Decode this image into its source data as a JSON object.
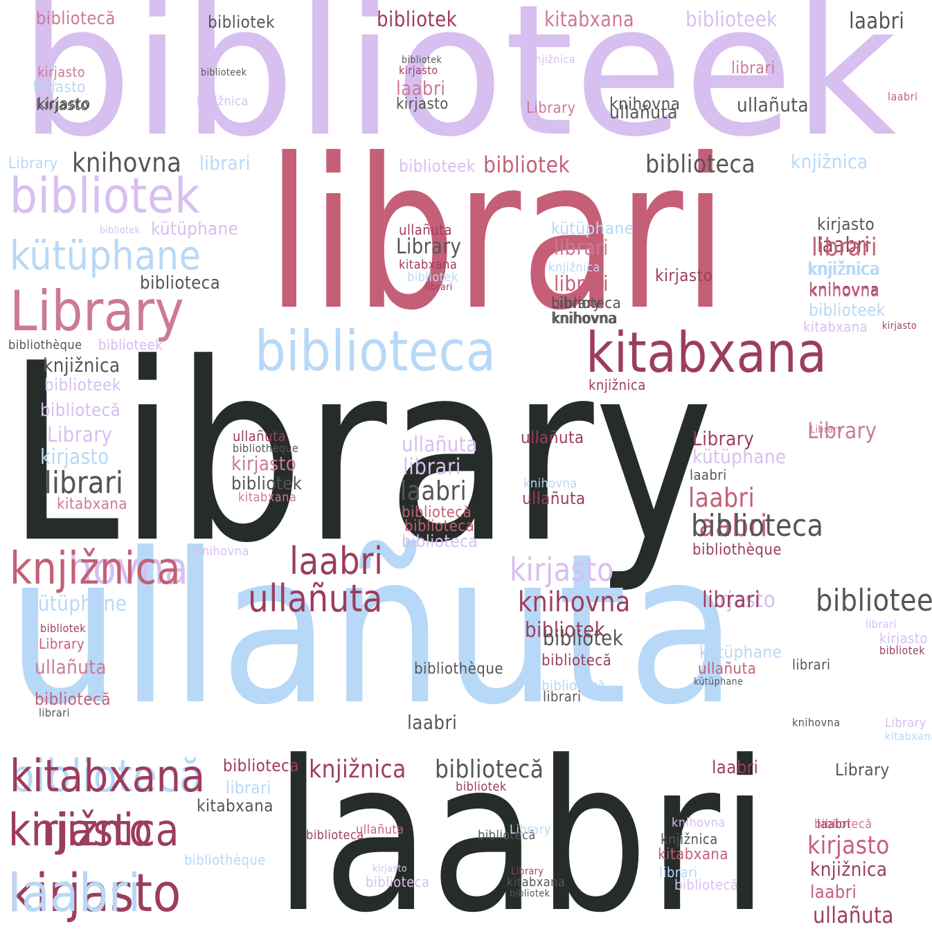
{
  "colors": {
    "dark": "#262d29",
    "charcoal": "#555555",
    "crimson": "#9c3d5c",
    "rose": "#c45f77",
    "pink": "#cc7a93",
    "lavender": "#d7bff0",
    "lightblue": "#b8d8f7"
  },
  "words": [
    {
      "text": "biblioteek",
      "color": "lavender"
    },
    {
      "text": "librari",
      "color": "rose"
    },
    {
      "text": "Library",
      "color": "dark"
    },
    {
      "text": "ullañuta",
      "color": "lightblue"
    },
    {
      "text": "laabri",
      "color": "dark"
    },
    {
      "text": "biblioteca",
      "color": "lightblue"
    },
    {
      "text": "kitabxana",
      "color": "crimson"
    },
    {
      "text": "Library",
      "color": "pink"
    },
    {
      "text": "bibliotek",
      "color": "lavender"
    },
    {
      "text": "kütüphane",
      "color": "lightblue"
    },
    {
      "text": "knihovna",
      "color": "lavender"
    },
    {
      "text": "bibliotecă",
      "color": "lightblue"
    },
    {
      "text": "knjižnica",
      "color": "crimson"
    },
    {
      "text": "kirjasto",
      "color": "crimson"
    },
    {
      "text": "bibliotecă",
      "color": "pink"
    },
    {
      "text": "bibliotek",
      "color": "crimson"
    },
    {
      "text": "kitabxana",
      "color": "pink"
    },
    {
      "text": "biblioteek",
      "color": "lavender"
    },
    {
      "text": "laabri",
      "color": "charcoal"
    },
    {
      "text": "bibliotek",
      "color": "charcoal"
    },
    {
      "text": "knihovna",
      "color": "charcoal"
    },
    {
      "text": "librari",
      "color": "lightblue"
    },
    {
      "text": "Library",
      "color": "lightblue"
    },
    {
      "text": "biblioteca",
      "color": "charcoal"
    },
    {
      "text": "knjižnica",
      "color": "lightblue"
    },
    {
      "text": "bibliotek",
      "color": "rose"
    },
    {
      "text": "biblioteek",
      "color": "lavender"
    },
    {
      "text": "ullañuta",
      "color": "charcoal"
    },
    {
      "text": "librari",
      "color": "pink"
    },
    {
      "text": "knihovna",
      "color": "charcoal"
    },
    {
      "text": "kirjasto",
      "color": "charcoal"
    },
    {
      "text": "Library",
      "color": "pink"
    },
    {
      "text": "laabri",
      "color": "pink"
    },
    {
      "text": "kirjasto",
      "color": "pink"
    },
    {
      "text": "kirjasto",
      "color": "lightblue"
    },
    {
      "text": "kirjasto",
      "color": "charcoal"
    },
    {
      "text": "biblioteek",
      "color": "charcoal"
    },
    {
      "text": "knjižnica",
      "color": "lavender"
    },
    {
      "text": "bibliotek",
      "color": "charcoal"
    },
    {
      "text": "kirjasto",
      "color": "crimson"
    },
    {
      "text": "laabri",
      "color": "rose"
    },
    {
      "text": "laabri",
      "color": "crimson"
    },
    {
      "text": "Library",
      "color": "pink"
    },
    {
      "text": "knjižnica",
      "color": "crimson"
    },
    {
      "text": "kirjasto",
      "color": "lavender"
    },
    {
      "text": "librari",
      "color": "pink"
    },
    {
      "text": "ullañuta",
      "color": "charcoal"
    },
    {
      "text": "knihovna",
      "color": "charcoal"
    },
    {
      "text": "kirjasto",
      "color": "charcoal"
    },
    {
      "text": "laabri",
      "color": "rose"
    },
    {
      "text": "bibliotecă",
      "color": "pink"
    },
    {
      "text": "kütüphane",
      "color": "lightblue"
    },
    {
      "text": "knihovna",
      "color": "crimson"
    },
    {
      "text": "biblioteca",
      "color": "charcoal"
    },
    {
      "text": "knjižnica",
      "color": "lightblue"
    },
    {
      "text": "librari",
      "color": "charcoal"
    },
    {
      "text": "bibliotek",
      "color": "lavender"
    },
    {
      "text": "biblioteek",
      "color": "lavender"
    },
    {
      "text": "knjižnica",
      "color": "lightblue"
    },
    {
      "text": "bibliotek",
      "color": "crimson"
    },
    {
      "text": "bibliotek",
      "color": "lightblue"
    },
    {
      "text": "kütüphane",
      "color": "lavender"
    },
    {
      "text": "Library",
      "color": "pink"
    },
    {
      "text": "ullañuta",
      "color": "crimson"
    },
    {
      "text": "Library",
      "color": "charcoal"
    },
    {
      "text": "kitabxana",
      "color": "crimson"
    },
    {
      "text": "bibliotek",
      "color": "lightblue"
    },
    {
      "text": "librari",
      "color": "crimson"
    },
    {
      "text": "librari",
      "color": "rose"
    },
    {
      "text": "kirjasto",
      "color": "crimson"
    },
    {
      "text": "biblioteca",
      "color": "charcoal"
    },
    {
      "text": "knihovna",
      "color": "charcoal"
    },
    {
      "text": "knjižnica",
      "color": "lavender"
    },
    {
      "text": "kirjasto",
      "color": "charcoal"
    },
    {
      "text": "librari",
      "color": "rose"
    },
    {
      "text": "knjižnica",
      "color": "lightblue"
    },
    {
      "text": "knihovna",
      "color": "rose"
    },
    {
      "text": "biblioteek",
      "color": "lightblue"
    },
    {
      "text": "kitabxana",
      "color": "lavender"
    },
    {
      "text": "kirjasto",
      "color": "crimson"
    },
    {
      "text": "Library",
      "color": "charcoal"
    },
    {
      "text": "bibliothèque",
      "color": "charcoal"
    },
    {
      "text": "biblioteek",
      "color": "lavender"
    },
    {
      "text": "knjižnica",
      "color": "charcoal"
    },
    {
      "text": "biblioteek",
      "color": "lavender"
    },
    {
      "text": "bibliotecă",
      "color": "lavender"
    },
    {
      "text": "Library",
      "color": "lavender"
    },
    {
      "text": "kirjasto",
      "color": "lightblue"
    },
    {
      "text": "librari",
      "color": "charcoal"
    },
    {
      "text": "kitabxana",
      "color": "pink"
    },
    {
      "text": "ullañuta",
      "color": "lavender"
    },
    {
      "text": "librari",
      "color": "lavender"
    },
    {
      "text": "laabri",
      "color": "charcoal"
    },
    {
      "text": "bibliotecă",
      "color": "rose"
    },
    {
      "text": "biblioteca",
      "color": "rose"
    },
    {
      "text": "biblioteca",
      "color": "lavender"
    },
    {
      "text": "ullañuta",
      "color": "crimson"
    },
    {
      "text": "bibliothèque",
      "color": "charcoal"
    },
    {
      "text": "kirjasto",
      "color": "pink"
    },
    {
      "text": "bibliotek",
      "color": "charcoal"
    },
    {
      "text": "kitabxana",
      "color": "pink"
    },
    {
      "text": "ullañuta",
      "color": "crimson"
    },
    {
      "text": "knihovna",
      "color": "lightblue"
    },
    {
      "text": "ullañuta",
      "color": "crimson"
    },
    {
      "text": "Library",
      "color": "crimson"
    },
    {
      "text": "kütüphane",
      "color": "lavender"
    },
    {
      "text": "laabri",
      "color": "charcoal"
    },
    {
      "text": "laabri",
      "color": "rose"
    },
    {
      "text": "biblioteca",
      "color": "charcoal"
    },
    {
      "text": "bibliothèque",
      "color": "crimson"
    },
    {
      "text": "kirjasto",
      "color": "lavender"
    },
    {
      "text": "librari",
      "color": "crimson"
    },
    {
      "text": "biblioteek",
      "color": "charcoal"
    },
    {
      "text": "laabri",
      "color": "crimson"
    },
    {
      "text": "ullañuta",
      "color": "crimson"
    },
    {
      "text": "knihovna",
      "color": "crimson"
    },
    {
      "text": "knihovna",
      "color": "lavender"
    },
    {
      "text": "knjižnica",
      "color": "rose"
    },
    {
      "text": "kütüphane",
      "color": "lightblue"
    },
    {
      "text": "bibliotek",
      "color": "crimson"
    },
    {
      "text": "Library",
      "color": "rose"
    },
    {
      "text": "ullañuta",
      "color": "pink"
    },
    {
      "text": "bibliotecă",
      "color": "rose"
    },
    {
      "text": "librari",
      "color": "charcoal"
    },
    {
      "text": "bibliotek",
      "color": "charcoal"
    },
    {
      "text": "bibliotecă",
      "color": "crimson"
    },
    {
      "text": "bibliotecă",
      "color": "lightblue"
    },
    {
      "text": "kitabxana",
      "color": "crimson"
    },
    {
      "text": "bibliotecă",
      "color": "charcoal"
    },
    {
      "text": "knjižnica",
      "color": "crimson"
    },
    {
      "text": "kirjasto",
      "color": "crimson"
    },
    {
      "text": "laabri",
      "color": "lightblue"
    },
    {
      "text": "librari",
      "color": "lightblue"
    },
    {
      "text": "biblioteca",
      "color": "crimson"
    },
    {
      "text": "bibliotek",
      "color": "crimson"
    },
    {
      "text": "kitabxana",
      "color": "charcoal"
    },
    {
      "text": "bibliothèque",
      "color": "lightblue"
    },
    {
      "text": "laabri",
      "color": "crimson"
    },
    {
      "text": "Library",
      "color": "charcoal"
    },
    {
      "text": "knihovna",
      "color": "lavender"
    },
    {
      "text": "knjižnica",
      "color": "charcoal"
    },
    {
      "text": "kitabxana",
      "color": "rose"
    },
    {
      "text": "librari",
      "color": "lightblue"
    },
    {
      "text": "bibliotecă",
      "color": "lavender"
    },
    {
      "text": "laabri",
      "color": "crimson"
    },
    {
      "text": "kirjasto",
      "color": "rose"
    },
    {
      "text": "knjižnica",
      "color": "crimson"
    },
    {
      "text": "laabri",
      "color": "rose"
    },
    {
      "text": "ullañuta",
      "color": "crimson"
    },
    {
      "text": "kirjasto",
      "color": "lavender"
    },
    {
      "text": "biblioteca",
      "color": "lavender"
    },
    {
      "text": "kitabxana",
      "color": "charcoal"
    },
    {
      "text": "bibliotek",
      "color": "charcoal"
    },
    {
      "text": "Library",
      "color": "crimson"
    },
    {
      "text": "biblioteca",
      "color": "crimson"
    },
    {
      "text": "ullañuta",
      "color": "rose"
    },
    {
      "text": "bibliotecă",
      "color": "charcoal"
    },
    {
      "text": "Library",
      "color": "lightblue"
    },
    {
      "text": "kütüphane",
      "color": "lightblue"
    },
    {
      "text": "ullañuta",
      "color": "rose"
    },
    {
      "text": "librari",
      "color": "charcoal"
    },
    {
      "text": "bibliothèque",
      "color": "charcoal"
    },
    {
      "text": "kütüphane",
      "color": "charcoal"
    },
    {
      "text": "librari",
      "color": "lavender"
    },
    {
      "text": "kirjasto",
      "color": "lavender"
    },
    {
      "text": "bibliotek",
      "color": "crimson"
    },
    {
      "text": "librari",
      "color": "charcoal"
    },
    {
      "text": "laabri",
      "color": "charcoal"
    },
    {
      "text": "Library",
      "color": "lavender"
    },
    {
      "text": "kitabxana",
      "color": "lightblue"
    },
    {
      "text": "knihovna",
      "color": "charcoal"
    }
  ]
}
